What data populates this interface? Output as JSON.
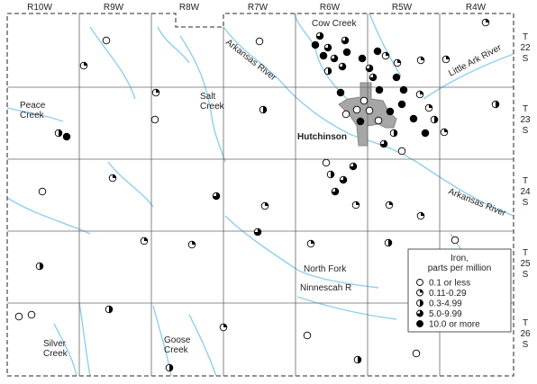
{
  "ranges": [
    "R10W",
    "R9W",
    "R8W",
    "R7W",
    "R6W",
    "R5W",
    "R4W"
  ],
  "townships": [
    [
      "T",
      "22",
      "S"
    ],
    [
      "T",
      "23",
      "S"
    ],
    [
      "T",
      "24",
      "S"
    ],
    [
      "T",
      "25",
      "S"
    ],
    [
      "T",
      "26",
      "S"
    ]
  ],
  "features": [
    [
      "Cow Creek"
    ],
    [
      "Little Ark River"
    ],
    [
      "Arkansas River"
    ],
    [
      "Salt",
      "Creek"
    ],
    [
      "Peace",
      "Creek"
    ],
    [
      "Hutchinson"
    ],
    [
      "Arkansas River"
    ],
    [
      "North Fork"
    ],
    [
      "Ninnescah R"
    ],
    [
      "Silver",
      "Creek"
    ],
    [
      "Goose",
      "Creek"
    ]
  ],
  "legend": {
    "title": [
      "Iron,",
      "parts per million"
    ],
    "items": [
      "0.1 or less",
      "0.11-0.29",
      "0.3-4.99",
      "5.0-9.99",
      "10.0 or more"
    ]
  }
}
